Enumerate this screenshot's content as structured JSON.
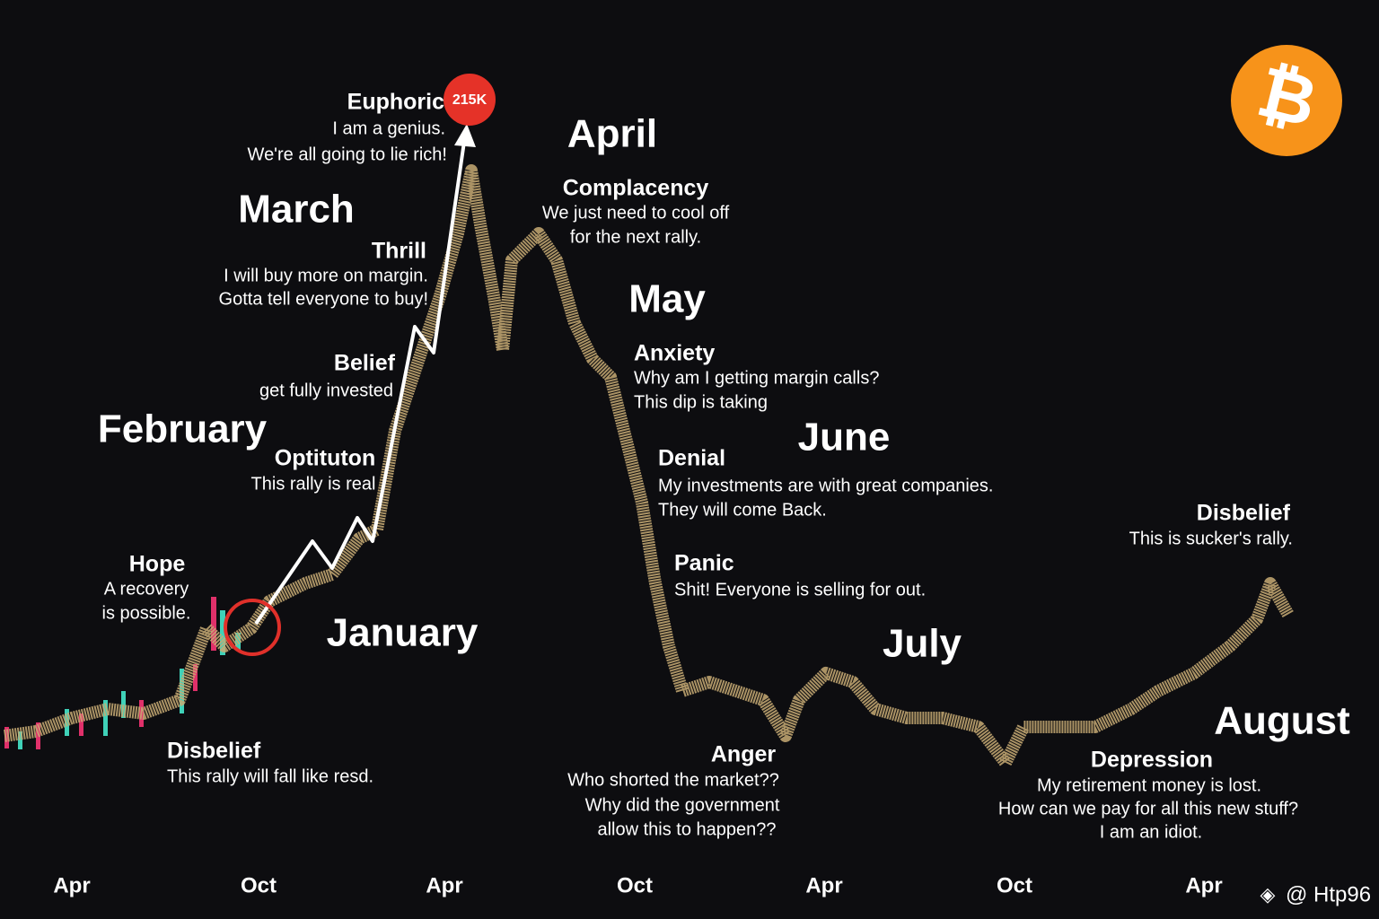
{
  "month_labels": [
    "January",
    "February",
    "March",
    "April",
    "May",
    "June",
    "July",
    "August"
  ],
  "phases": [
    {
      "title": "Hope",
      "lines": [
        "A recovery",
        "is possible."
      ]
    },
    {
      "title": "Disbelief",
      "lines": [
        "This rally will fall like resd."
      ]
    },
    {
      "title": "Optituton",
      "lines": [
        "This rally is real"
      ]
    },
    {
      "title": "Belief",
      "lines": [
        "get fully invested"
      ]
    },
    {
      "title": "Thrill",
      "lines": [
        "I will buy more on margin.",
        "Gotta tell everyone to buy!"
      ]
    },
    {
      "title": "Euphoric",
      "lines": [
        "I am a genius.",
        "We're all going to lie rich!"
      ]
    },
    {
      "title": "Complacency",
      "lines": [
        "We just need to cool off",
        "for the next rally."
      ]
    },
    {
      "title": "Anxiety",
      "lines": [
        "Why am I getting margin calls?",
        "This dip is taking"
      ]
    },
    {
      "title": "Denial",
      "lines": [
        "My investments are with great companies.",
        "They will come Back."
      ]
    },
    {
      "title": "Panic",
      "lines": [
        "Shit! Everyone is selling for out."
      ]
    },
    {
      "title": "Anger",
      "lines": [
        "Who shorted the market??",
        "Why did the government",
        "allow this to happen??"
      ]
    },
    {
      "title": "Disbelief",
      "lines": [
        "This is sucker's rally."
      ]
    },
    {
      "title": "Depression",
      "lines": [
        "My retirement money is lost.",
        "How can we pay for all this new stuff?",
        "I am an idiot."
      ]
    }
  ],
  "x_axis_labels": [
    "Apr",
    "Oct",
    "Apr",
    "Oct",
    "Apr",
    "Oct",
    "Apr"
  ],
  "peak_badge": "215K",
  "watermark": "@ Htp96"
}
